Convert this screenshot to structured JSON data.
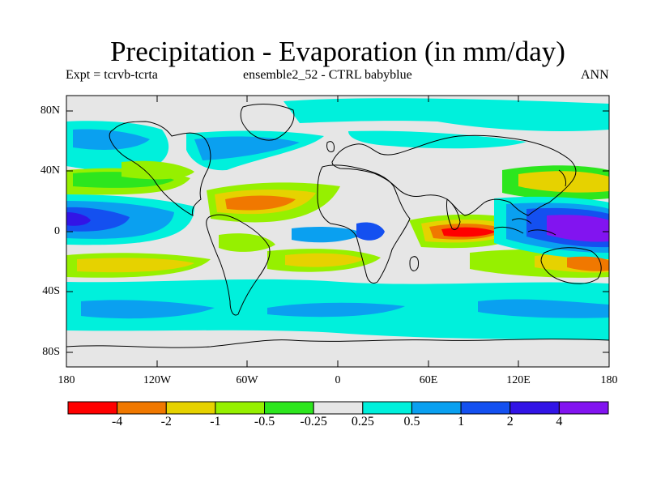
{
  "figure": {
    "title": "Precipitation - Evaporation (in mm/day)",
    "subtitle_left": "Expt = tcrvb-tcrta",
    "subtitle_center": "ensemble2_52 - CTRL babyblue",
    "subtitle_right": "ANN"
  },
  "axes": {
    "lat_ticks": [
      "80N",
      "40N",
      "0",
      "40S",
      "80S"
    ],
    "lon_ticks": [
      "180",
      "120W",
      "60W",
      "0",
      "60E",
      "120E",
      "180"
    ]
  },
  "colorbar": {
    "colors": [
      "#ff0000",
      "#f07800",
      "#e6d200",
      "#96f000",
      "#2de61e",
      "#e6e6e6",
      "#00f0dc",
      "#0aa0f0",
      "#1450f0",
      "#3214e6",
      "#8214f0"
    ],
    "labels": [
      "-4",
      "-2",
      "-1",
      "-0.5",
      "-0.25",
      "0.25",
      "0.5",
      "1",
      "2",
      "4"
    ]
  },
  "colors": {
    "background": "#e6e6e6",
    "coastline": "#000000"
  }
}
